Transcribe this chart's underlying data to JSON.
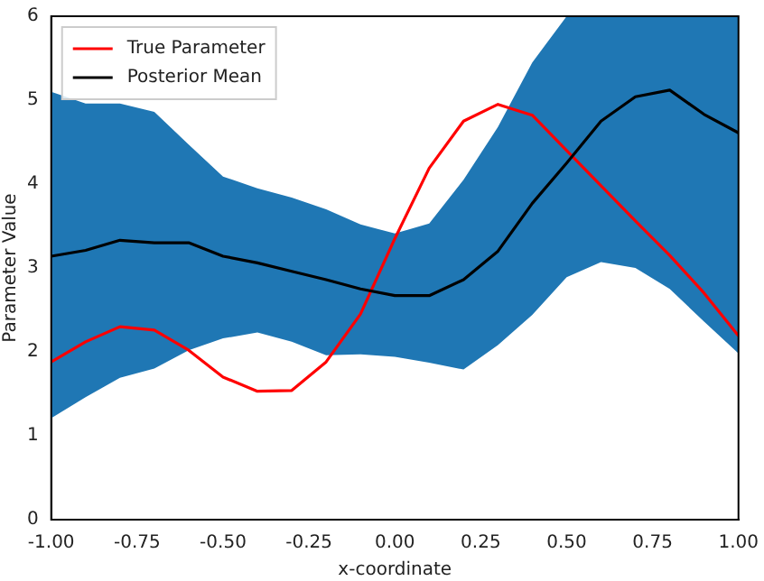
{
  "chart_data": {
    "type": "line",
    "xlabel": "x-coordinate",
    "ylabel": "Parameter Value",
    "x": [
      -1,
      -0.9,
      -0.8,
      -0.7,
      -0.6,
      -0.5,
      -0.4,
      -0.3,
      -0.2,
      -0.1,
      0,
      0.1,
      0.2,
      0.3,
      0.4,
      0.5,
      0.6,
      0.7,
      0.8,
      0.9,
      1.0
    ],
    "series": [
      {
        "name": "True Parameter",
        "color": "#ff0000",
        "values": [
          1.88,
          2.12,
          2.3,
          2.26,
          2.02,
          1.7,
          1.53,
          1.54,
          1.88,
          2.45,
          3.35,
          4.19,
          4.75,
          4.95,
          4.82,
          4.4,
          3.98,
          3.56,
          3.15,
          2.7,
          2.19
        ]
      },
      {
        "name": "Posterior Mean",
        "color": "#000000",
        "values": [
          3.14,
          3.21,
          3.33,
          3.3,
          3.3,
          3.14,
          3.06,
          2.96,
          2.86,
          2.75,
          2.67,
          2.67,
          2.86,
          3.2,
          3.77,
          4.25,
          4.75,
          5.04,
          5.12,
          4.83,
          4.61
        ],
        "lower": [
          1.21,
          1.46,
          1.69,
          1.8,
          2.02,
          2.16,
          2.23,
          2.12,
          1.96,
          1.97,
          1.94,
          1.87,
          1.79,
          2.08,
          2.44,
          2.89,
          3.07,
          3.0,
          2.75,
          2.36,
          1.98
        ],
        "upper": [
          5.1,
          4.96,
          4.96,
          4.86,
          4.47,
          4.09,
          3.95,
          3.84,
          3.7,
          3.52,
          3.41,
          3.53,
          4.05,
          4.68,
          5.45,
          6,
          6,
          6,
          6,
          6,
          6
        ]
      }
    ],
    "xlim": [
      -1,
      1
    ],
    "xticks": [
      {
        "value": -1,
        "label": "-1.00"
      },
      {
        "value": -0.75,
        "label": "-0.75"
      },
      {
        "value": -0.5,
        "label": "-0.50"
      },
      {
        "value": -0.25,
        "label": "-0.25"
      },
      {
        "value": 0,
        "label": "0.00"
      },
      {
        "value": 0.25,
        "label": "0.25"
      },
      {
        "value": 0.5,
        "label": "0.50"
      },
      {
        "value": 0.75,
        "label": "0.75"
      },
      {
        "value": 1,
        "label": "1.00"
      }
    ],
    "ylim": [
      0,
      6
    ],
    "yticks": [
      0,
      1,
      2,
      3,
      4,
      5,
      6
    ],
    "grid": false,
    "legend": "top left",
    "marker": "none",
    "line_style": "solid"
  }
}
